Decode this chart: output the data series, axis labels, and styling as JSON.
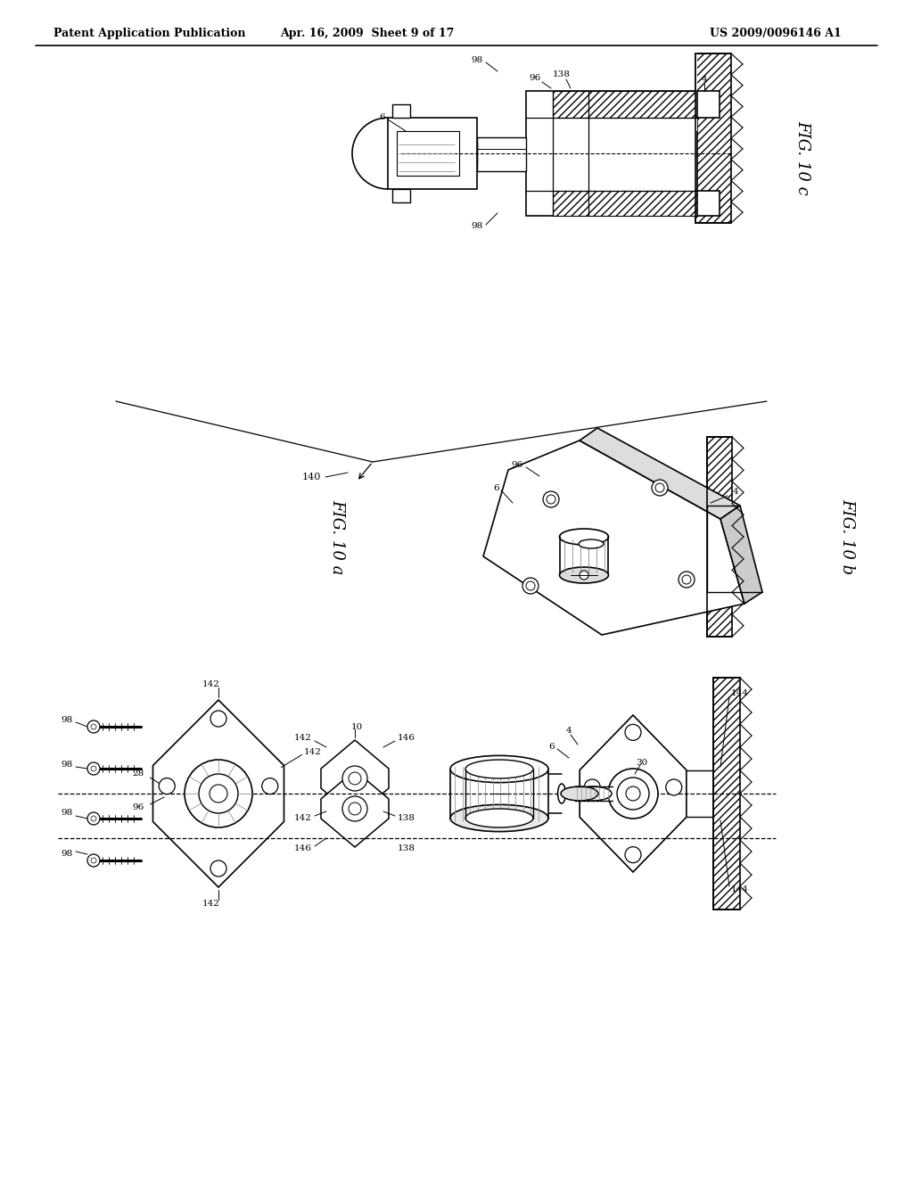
{
  "bg_color": "#ffffff",
  "header_left": "Patent Application Publication",
  "header_center": "Apr. 16, 2009  Sheet 9 of 17",
  "header_right": "US 2009/0096146 A1"
}
